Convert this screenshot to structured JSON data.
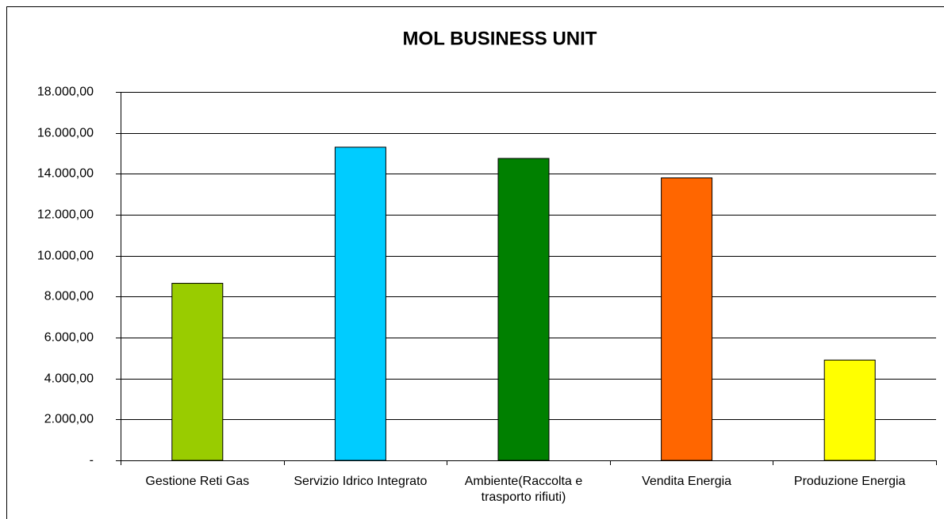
{
  "chart_data": {
    "type": "bar",
    "title": "MOL BUSINESS UNIT",
    "categories": [
      "Gestione Reti Gas",
      "Servizio Idrico Integrato",
      "Ambiente(Raccolta e trasporto rifiuti)",
      "Vendita Energia",
      "Produzione Energia"
    ],
    "values": [
      8650,
      15300,
      14750,
      13800,
      4900
    ],
    "colors": [
      "#99cc00",
      "#00ccff",
      "#008000",
      "#ff6600",
      "#ffff00"
    ],
    "ylim": [
      0,
      18000
    ],
    "yticks": [
      {
        "value": 0,
        "label": "-"
      },
      {
        "value": 2000,
        "label": "2.000,00"
      },
      {
        "value": 4000,
        "label": "4.000,00"
      },
      {
        "value": 6000,
        "label": "6.000,00"
      },
      {
        "value": 8000,
        "label": "8.000,00"
      },
      {
        "value": 10000,
        "label": "10.000,00"
      },
      {
        "value": 12000,
        "label": "12.000,00"
      },
      {
        "value": 14000,
        "label": "14.000,00"
      },
      {
        "value": 16000,
        "label": "16.000,00"
      },
      {
        "value": 18000,
        "label": "18.000,00"
      }
    ],
    "grid": true
  }
}
